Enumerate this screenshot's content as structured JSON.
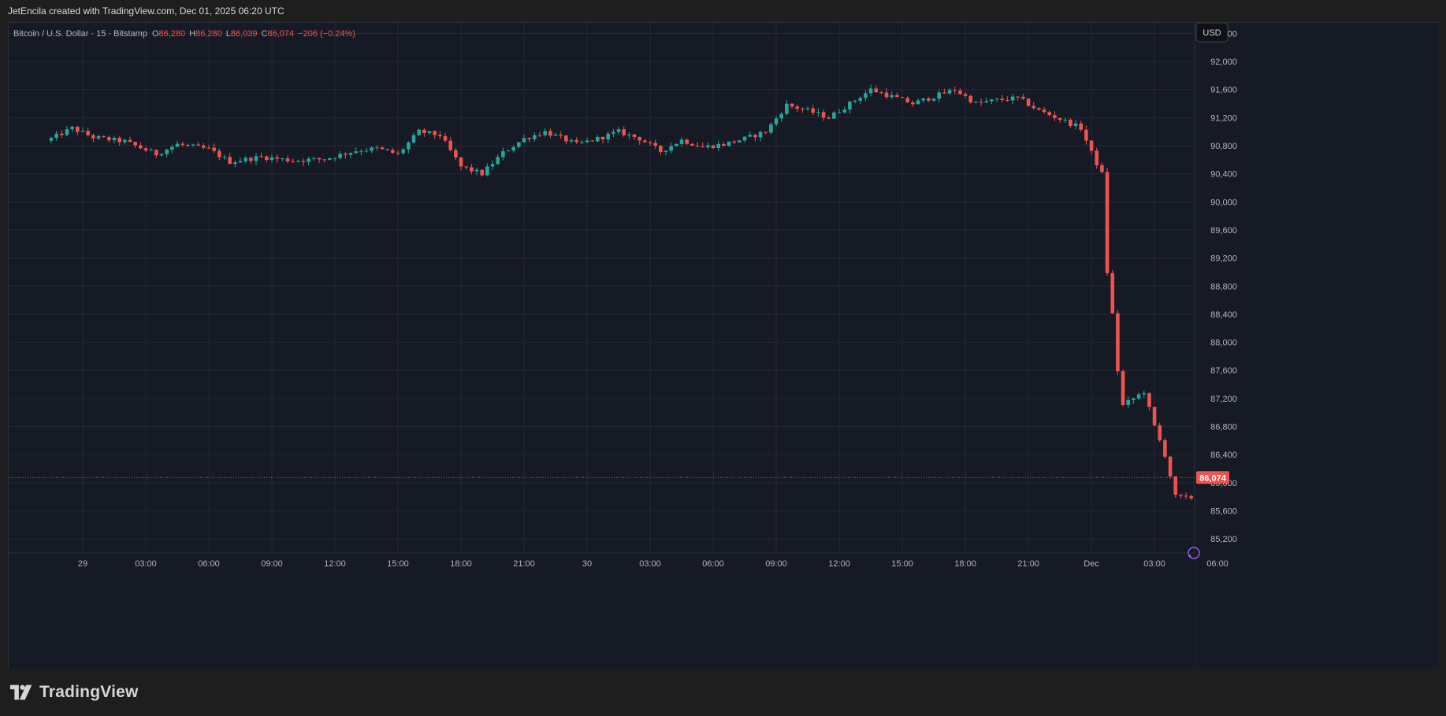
{
  "header": {
    "credit": "JetEncila created with TradingView.com, Dec 01, 2025 06:20 UTC"
  },
  "legend": {
    "symbol": "Bitcoin / U.S. Dollar · 15 · Bitstamp",
    "open_label": "O",
    "open": "86,280",
    "high_label": "H",
    "high": "86,280",
    "low_label": "L",
    "low": "86,039",
    "close_label": "C",
    "close": "86,074",
    "change": "−206 (−0.24%)"
  },
  "currency_badge": "USD",
  "last_price_label": "86,074",
  "footer": {
    "brand": "TradingView"
  },
  "colors": {
    "up": "#26a69a",
    "down": "#ef5350",
    "background": "#161a25",
    "grid": "#242835",
    "text": "#b2b5be"
  },
  "icons": {
    "brand": "tradingview-logo-icon",
    "assistant": "sparkle-icon"
  },
  "chart_data": {
    "type": "candlestick",
    "interval": "15",
    "y_ticks": [
      92400,
      92000,
      91600,
      91200,
      90800,
      90400,
      90000,
      89600,
      89200,
      88800,
      88400,
      88000,
      87600,
      87200,
      86800,
      86400,
      86000,
      85600,
      85200
    ],
    "y_tick_labels": [
      "92,400",
      "92,000",
      "91,600",
      "91,200",
      "90,800",
      "90,400",
      "90,000",
      "89,600",
      "89,200",
      "88,800",
      "88,400",
      "88,000",
      "87,600",
      "87,200",
      "86,800",
      "86,400",
      "86,000",
      "85,600",
      "85,200"
    ],
    "ylim": [
      85000,
      92550
    ],
    "x_ticks": [
      {
        "bar": 6,
        "label": "29"
      },
      {
        "bar": 18,
        "label": "03:00"
      },
      {
        "bar": 30,
        "label": "06:00"
      },
      {
        "bar": 42,
        "label": "09:00"
      },
      {
        "bar": 54,
        "label": "12:00"
      },
      {
        "bar": 66,
        "label": "15:00"
      },
      {
        "bar": 78,
        "label": "18:00"
      },
      {
        "bar": 90,
        "label": "21:00"
      },
      {
        "bar": 102,
        "label": "30"
      },
      {
        "bar": 114,
        "label": "03:00"
      },
      {
        "bar": 126,
        "label": "06:00"
      },
      {
        "bar": 138,
        "label": "09:00"
      },
      {
        "bar": 150,
        "label": "12:00"
      },
      {
        "bar": 162,
        "label": "15:00"
      },
      {
        "bar": 174,
        "label": "18:00"
      },
      {
        "bar": 186,
        "label": "21:00"
      },
      {
        "bar": 198,
        "label": "Dec"
      },
      {
        "bar": 210,
        "label": "03:00"
      },
      {
        "bar": 222,
        "label": "06:00"
      }
    ],
    "last_price": 86074,
    "anchors": [
      [
        0,
        90900
      ],
      [
        4,
        91050
      ],
      [
        8,
        90920
      ],
      [
        14,
        90860
      ],
      [
        20,
        90680
      ],
      [
        24,
        90820
      ],
      [
        30,
        90750
      ],
      [
        34,
        90570
      ],
      [
        40,
        90640
      ],
      [
        46,
        90590
      ],
      [
        52,
        90610
      ],
      [
        58,
        90730
      ],
      [
        62,
        90760
      ],
      [
        66,
        90680
      ],
      [
        70,
        91000
      ],
      [
        74,
        90950
      ],
      [
        78,
        90500
      ],
      [
        82,
        90400
      ],
      [
        86,
        90700
      ],
      [
        90,
        90900
      ],
      [
        94,
        91000
      ],
      [
        100,
        90820
      ],
      [
        104,
        90900
      ],
      [
        108,
        91000
      ],
      [
        112,
        90900
      ],
      [
        116,
        90720
      ],
      [
        120,
        90880
      ],
      [
        124,
        90780
      ],
      [
        128,
        90820
      ],
      [
        132,
        90900
      ],
      [
        136,
        91000
      ],
      [
        140,
        91380
      ],
      [
        144,
        91300
      ],
      [
        148,
        91200
      ],
      [
        152,
        91400
      ],
      [
        156,
        91600
      ],
      [
        160,
        91500
      ],
      [
        164,
        91400
      ],
      [
        168,
        91500
      ],
      [
        172,
        91600
      ],
      [
        176,
        91400
      ],
      [
        180,
        91450
      ],
      [
        184,
        91480
      ],
      [
        188,
        91300
      ],
      [
        192,
        91180
      ],
      [
        196,
        91050
      ],
      [
        198,
        90700
      ],
      [
        200,
        90400
      ],
      [
        201,
        89000
      ],
      [
        202,
        88400
      ],
      [
        203,
        87600
      ],
      [
        204,
        87100
      ],
      [
        206,
        87200
      ],
      [
        208,
        87300
      ],
      [
        210,
        86800
      ],
      [
        212,
        86400
      ],
      [
        214,
        85800
      ],
      [
        216,
        85780
      ],
      [
        218,
        85800
      ],
      [
        220,
        86000
      ],
      [
        224,
        86074
      ]
    ]
  }
}
